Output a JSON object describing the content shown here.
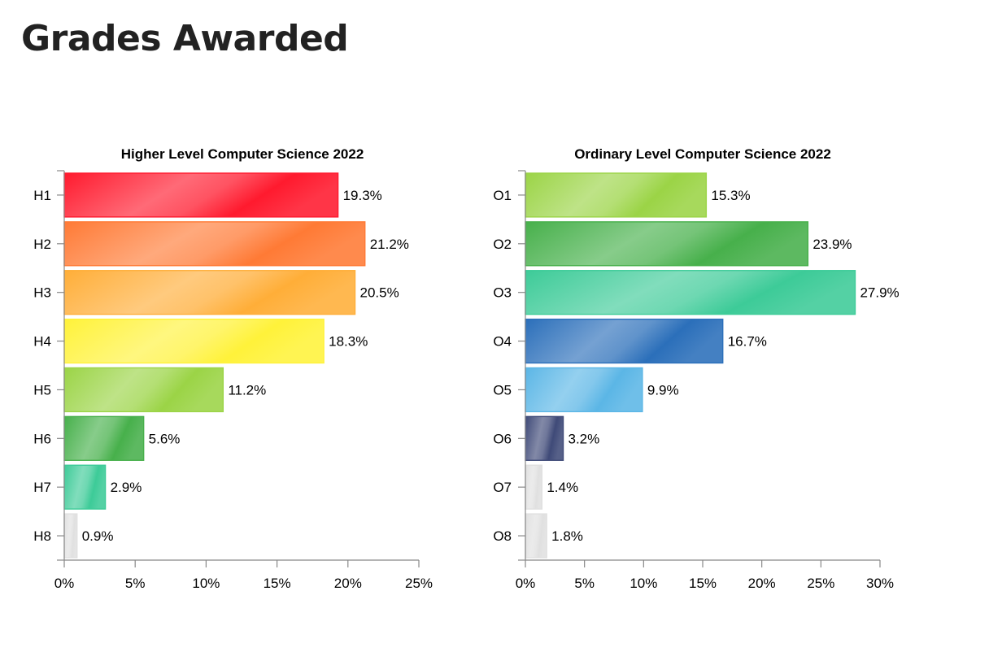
{
  "page": {
    "title": "Grades Awarded"
  },
  "chart_data": [
    {
      "type": "bar",
      "orientation": "horizontal",
      "title": "Higher Level Computer Science 2022",
      "categories": [
        "H1",
        "H2",
        "H3",
        "H4",
        "H5",
        "H6",
        "H7",
        "H8"
      ],
      "values": [
        19.3,
        21.2,
        20.5,
        18.3,
        11.2,
        5.6,
        2.9,
        0.9
      ],
      "value_labels": [
        "19.3%",
        "21.2%",
        "20.5%",
        "18.3%",
        "11.2%",
        "5.6%",
        "2.9%",
        "0.9%"
      ],
      "colors": [
        "#ff1a2e",
        "#ff7a35",
        "#ffae38",
        "#fff23a",
        "#9bd446",
        "#47b04b",
        "#3dcb98",
        "#e0e0e0"
      ],
      "xlim": [
        0,
        25
      ],
      "xticks": [
        0,
        5,
        10,
        15,
        20,
        25
      ],
      "xtick_labels": [
        "0%",
        "5%",
        "10%",
        "15%",
        "20%",
        "25%"
      ],
      "xlabel": "",
      "ylabel": "",
      "grid": false,
      "legend": "none"
    },
    {
      "type": "bar",
      "orientation": "horizontal",
      "title": "Ordinary Level Computer Science 2022",
      "categories": [
        "O1",
        "O2",
        "O3",
        "O4",
        "O5",
        "O6",
        "O7",
        "O8"
      ],
      "values": [
        15.3,
        23.9,
        27.9,
        16.7,
        9.9,
        3.2,
        1.4,
        1.8
      ],
      "value_labels": [
        "15.3%",
        "23.9%",
        "27.9%",
        "16.7%",
        "9.9%",
        "3.2%",
        "1.4%",
        "1.8%"
      ],
      "colors": [
        "#9bd446",
        "#47b04b",
        "#3dcb98",
        "#2b6fba",
        "#5bb6e6",
        "#3f4a78",
        "#e0e0e0",
        "#e0e0e0"
      ],
      "xlim": [
        0,
        30
      ],
      "xticks": [
        0,
        5,
        10,
        15,
        20,
        25,
        30
      ],
      "xtick_labels": [
        "0%",
        "5%",
        "10%",
        "15%",
        "20%",
        "25%",
        "30%"
      ],
      "xlabel": "",
      "ylabel": "",
      "grid": false,
      "legend": "none"
    }
  ]
}
